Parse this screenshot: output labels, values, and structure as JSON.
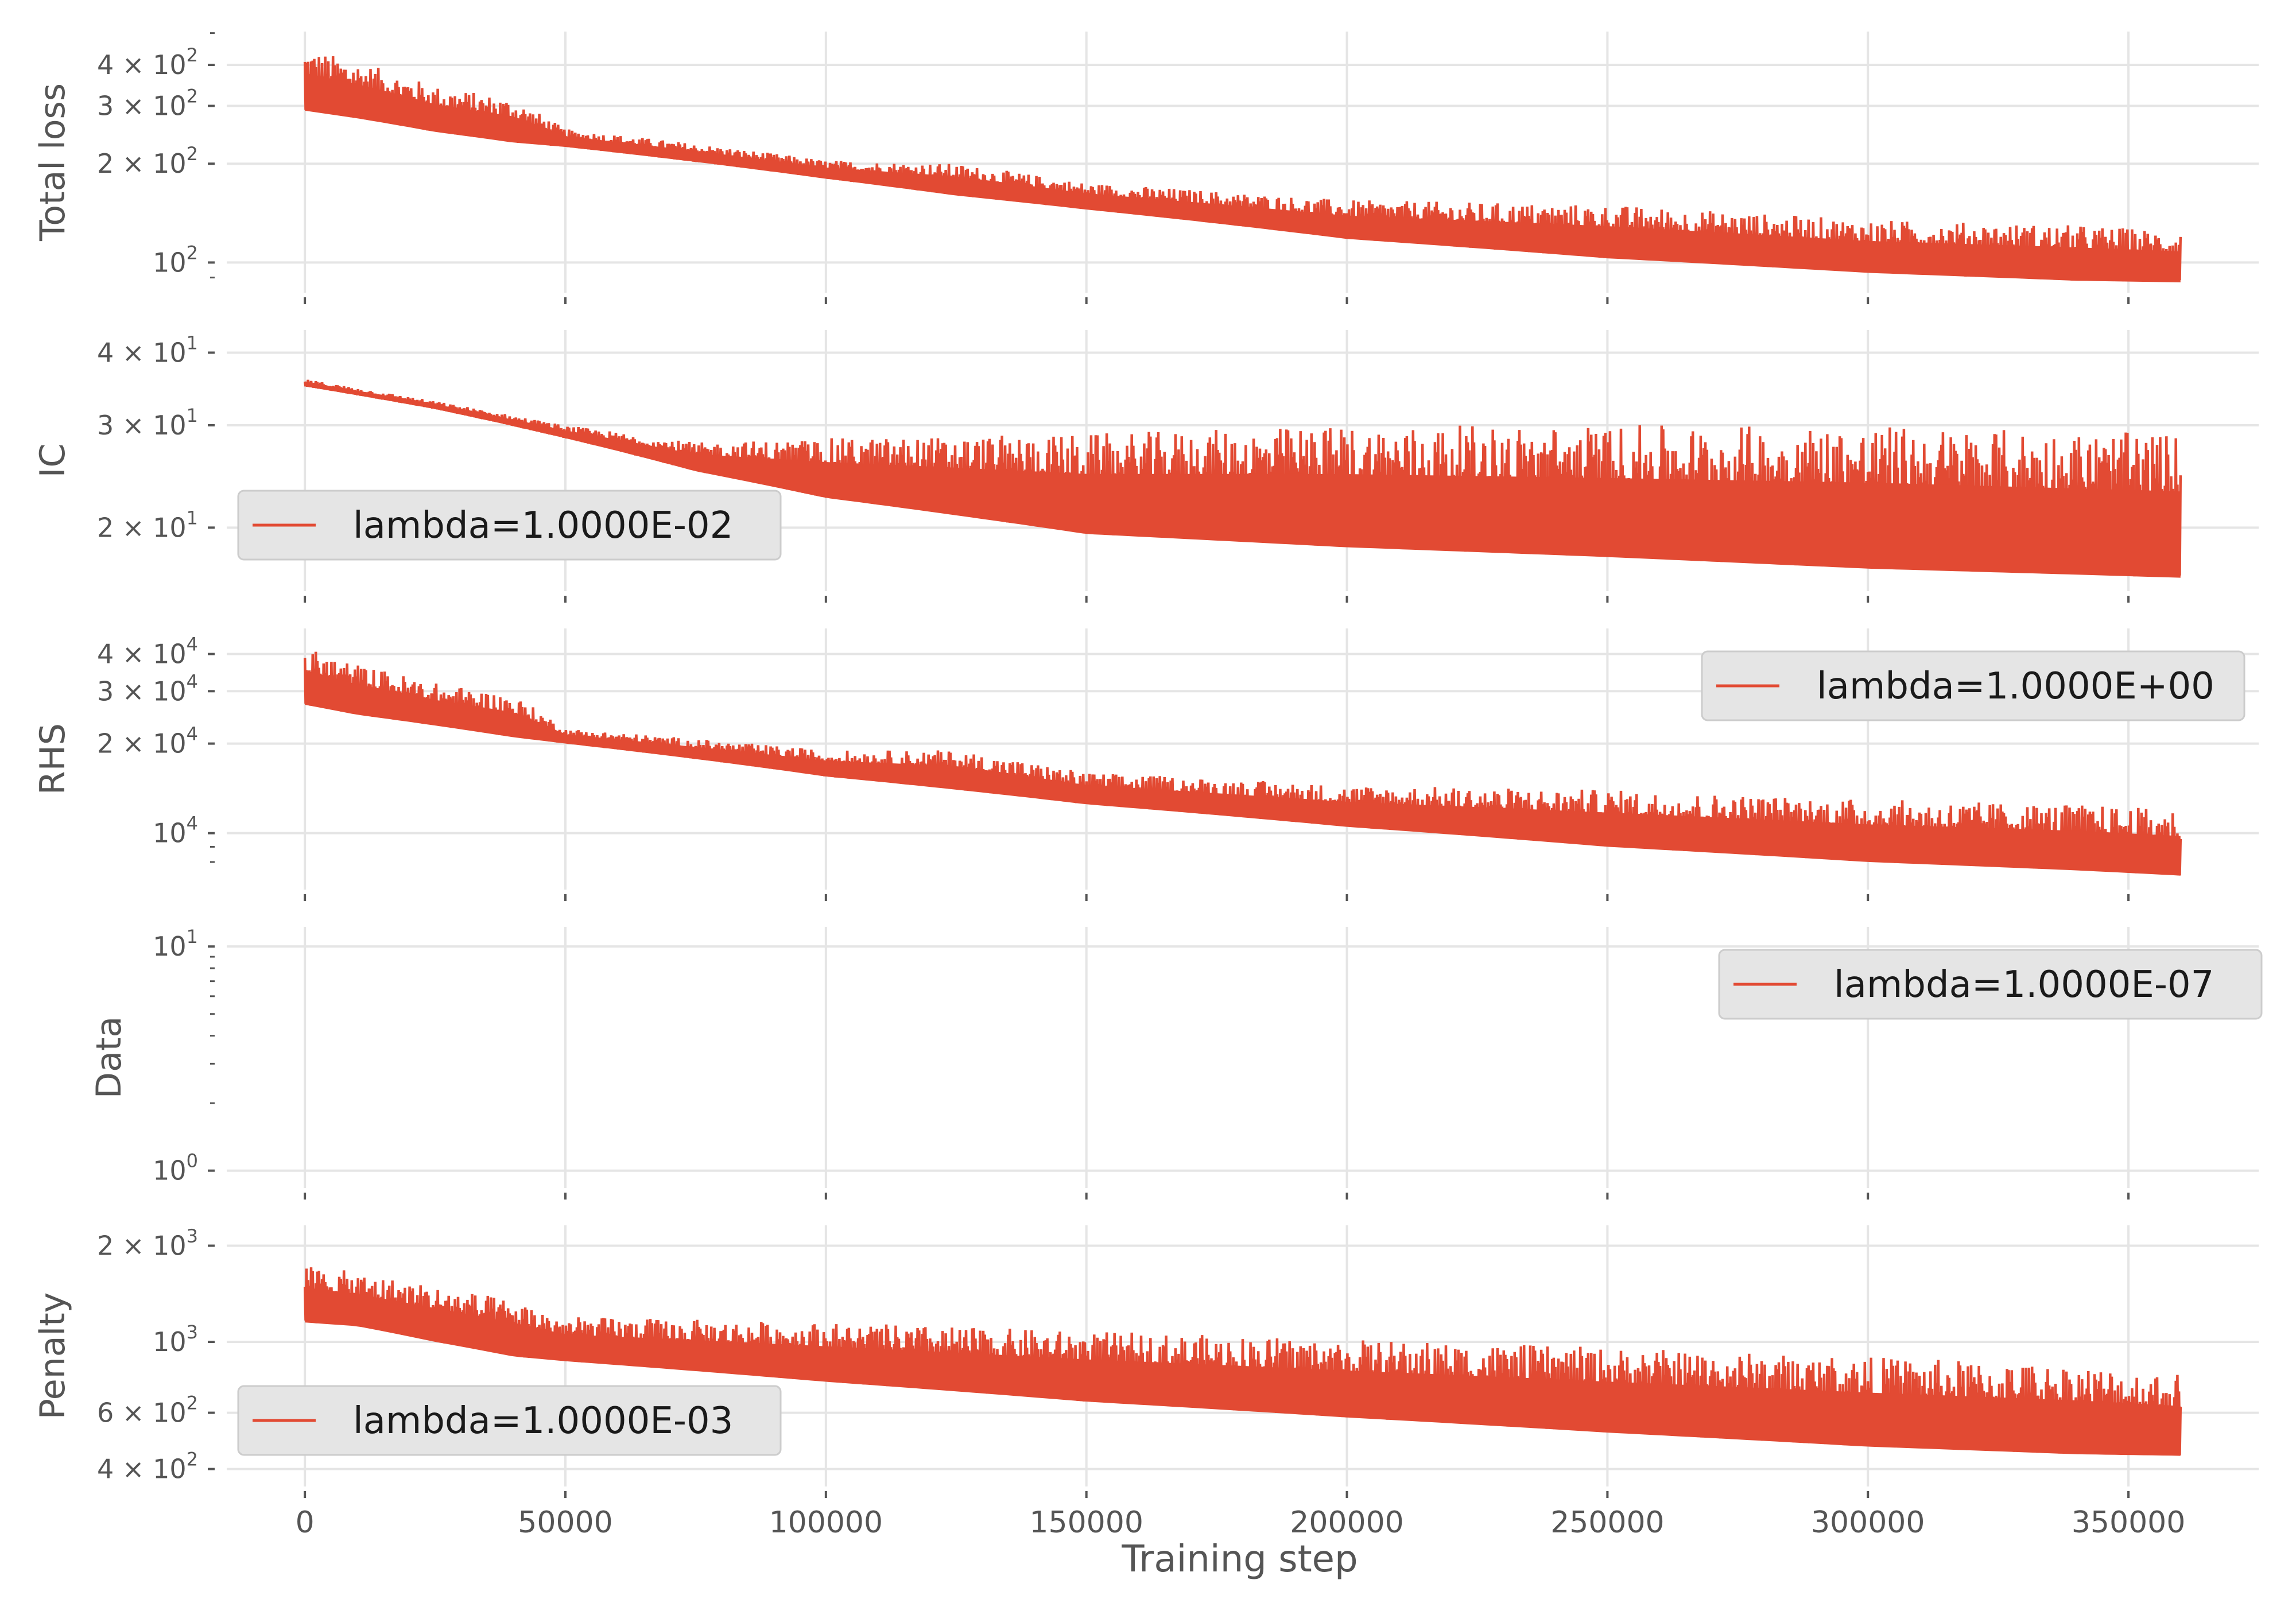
{
  "figure": {
    "xlabel": "Training step",
    "line_color": "#E24A33",
    "grid_color": "#E5E5E5",
    "text_color": "#555555",
    "legend_bg": "#E5E5E5"
  },
  "chart_data": [
    {
      "type": "line",
      "ylabel": "Total loss",
      "yscale": "log",
      "ylim": [
        87,
        470
      ],
      "xlim": [
        -15000,
        375000
      ],
      "x_ticks": [
        0,
        50000,
        100000,
        150000,
        200000,
        250000,
        300000,
        350000
      ],
      "y_ticks": [
        {
          "value": 100,
          "label": "10",
          "sup": "2"
        },
        {
          "value": 200,
          "label": "2 × 10",
          "sup": "2"
        },
        {
          "value": 300,
          "label": "3 × 10",
          "sup": "2"
        },
        {
          "value": 400,
          "label": "4 × 10",
          "sup": "2"
        }
      ],
      "minor_y_ticks": [
        90,
        500
      ],
      "series": [
        {
          "x": [
            0,
            10000,
            25000,
            40000,
            50000,
            100000,
            125000,
            150000,
            200000,
            250000,
            300000,
            340000,
            360000
          ],
          "lower": [
            290,
            275,
            250,
            232,
            225,
            180,
            160,
            145,
            118,
            103,
            93,
            88,
            87
          ],
          "upper": [
            450,
            410,
            345,
            315,
            255,
            205,
            200,
            175,
            155,
            150,
            135,
            130,
            125
          ]
        }
      ],
      "legend": null
    },
    {
      "type": "line",
      "ylabel": "IC",
      "yscale": "log",
      "ylim": [
        16.2,
        42
      ],
      "xlim": [
        -15000,
        375000
      ],
      "x_ticks": [
        0,
        50000,
        100000,
        150000,
        200000,
        250000,
        300000,
        350000
      ],
      "y_ticks": [
        {
          "value": 20,
          "label": "2 × 10",
          "sup": "1"
        },
        {
          "value": 30,
          "label": "3 × 10",
          "sup": "1"
        },
        {
          "value": 40,
          "label": "4 × 10",
          "sup": "1"
        }
      ],
      "minor_y_ticks": [],
      "series": [
        {
          "x": [
            0,
            25000,
            50000,
            75000,
            100000,
            150000,
            200000,
            250000,
            300000,
            360000
          ],
          "lower": [
            35,
            32,
            28.5,
            25,
            22.5,
            19.5,
            18.5,
            17.8,
            17.0,
            16.4
          ],
          "upper": [
            36,
            33,
            30,
            28,
            28.5,
            29,
            30,
            30,
            30,
            29
          ]
        }
      ],
      "legend": {
        "label": "lambda=1.0000E-02",
        "loc": "lower left"
      }
    },
    {
      "type": "line",
      "ylabel": "RHS",
      "yscale": "log",
      "ylim": [
        7000,
        45000
      ],
      "xlim": [
        -15000,
        375000
      ],
      "x_ticks": [
        0,
        50000,
        100000,
        150000,
        200000,
        250000,
        300000,
        350000
      ],
      "y_ticks": [
        {
          "value": 10000,
          "label": "10",
          "sup": "4"
        },
        {
          "value": 20000,
          "label": "2 × 10",
          "sup": "4"
        },
        {
          "value": 30000,
          "label": "3 × 10",
          "sup": "4"
        },
        {
          "value": 40000,
          "label": "4 × 10",
          "sup": "4"
        }
      ],
      "minor_y_ticks": [
        8000,
        9000
      ],
      "series": [
        {
          "x": [
            0,
            10000,
            25000,
            40000,
            50000,
            100000,
            125000,
            150000,
            200000,
            250000,
            300000,
            340000,
            360000
          ],
          "lower": [
            27000,
            25000,
            23000,
            21000,
            20000,
            15500,
            14000,
            12500,
            10500,
            9000,
            8000,
            7500,
            7200
          ],
          "upper": [
            42000,
            37000,
            32000,
            29000,
            22500,
            19000,
            19000,
            16000,
            14500,
            14000,
            13000,
            12500,
            12000
          ]
        }
      ],
      "legend": {
        "label": "lambda=1.0000E+00",
        "loc": "upper right"
      }
    },
    {
      "type": "line",
      "ylabel": "Data",
      "yscale": "log",
      "ylim": [
        0.93,
        11
      ],
      "xlim": [
        -15000,
        375000
      ],
      "x_ticks": [
        0,
        50000,
        100000,
        150000,
        200000,
        250000,
        300000,
        350000
      ],
      "y_ticks": [
        {
          "value": 1,
          "label": "10",
          "sup": "0"
        },
        {
          "value": 10,
          "label": "10",
          "sup": "1"
        }
      ],
      "minor_y_ticks": [
        2,
        3,
        4,
        5,
        6,
        7,
        8,
        9
      ],
      "series": [],
      "legend": {
        "label": "lambda=1.0000E-07",
        "loc": "upper right"
      }
    },
    {
      "type": "line",
      "ylabel": "Penalty",
      "yscale": "log",
      "ylim": [
        380,
        2150
      ],
      "xlim": [
        -15000,
        375000
      ],
      "x_ticks": [
        0,
        50000,
        100000,
        150000,
        200000,
        250000,
        300000,
        350000
      ],
      "y_ticks": [
        {
          "value": 400,
          "label": "4 × 10",
          "sup": "2"
        },
        {
          "value": 600,
          "label": "6 × 10",
          "sup": "2"
        },
        {
          "value": 1000,
          "label": "10",
          "sup": "3"
        },
        {
          "value": 2000,
          "label": "2 × 10",
          "sup": "3"
        }
      ],
      "minor_y_ticks": [],
      "series": [
        {
          "x": [
            0,
            10000,
            25000,
            40000,
            50000,
            100000,
            150000,
            200000,
            250000,
            300000,
            340000,
            360000
          ],
          "lower": [
            1150,
            1120,
            1000,
            900,
            870,
            750,
            650,
            580,
            520,
            470,
            445,
            440
          ],
          "upper": [
            1750,
            1650,
            1500,
            1350,
            1200,
            1150,
            1080,
            1020,
            960,
            900,
            850,
            800
          ]
        }
      ],
      "legend": {
        "label": "lambda=1.0000E-03",
        "loc": "lower left"
      }
    }
  ],
  "x_tick_labels": [
    "0",
    "50000",
    "100000",
    "150000",
    "200000",
    "250000",
    "300000",
    "350000"
  ]
}
